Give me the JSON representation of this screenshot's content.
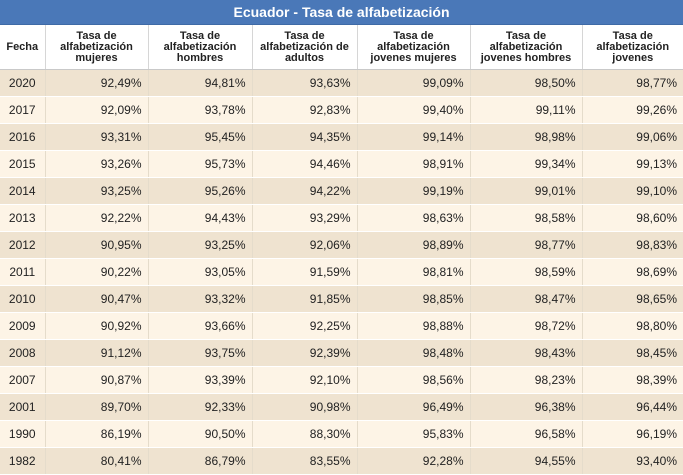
{
  "title": "Ecuador - Tasa de alfabetización",
  "headers": [
    "Fecha",
    "Tasa de alfabetización mujeres",
    "Tasa de alfabetización hombres",
    "Tasa de alfabetización de adultos",
    "Tasa de alfabetización jovenes mujeres",
    "Tasa de alfabetización jovenes hombres",
    "Tasa de alfabetización jovenes"
  ],
  "rows": [
    [
      "2020",
      "92,49%",
      "94,81%",
      "93,63%",
      "99,09%",
      "98,50%",
      "98,77%"
    ],
    [
      "2017",
      "92,09%",
      "93,78%",
      "92,83%",
      "99,40%",
      "99,11%",
      "99,26%"
    ],
    [
      "2016",
      "93,31%",
      "95,45%",
      "94,35%",
      "99,14%",
      "98,98%",
      "99,06%"
    ],
    [
      "2015",
      "93,26%",
      "95,73%",
      "94,46%",
      "98,91%",
      "99,34%",
      "99,13%"
    ],
    [
      "2014",
      "93,25%",
      "95,26%",
      "94,22%",
      "99,19%",
      "99,01%",
      "99,10%"
    ],
    [
      "2013",
      "92,22%",
      "94,43%",
      "93,29%",
      "98,63%",
      "98,58%",
      "98,60%"
    ],
    [
      "2012",
      "90,95%",
      "93,25%",
      "92,06%",
      "98,89%",
      "98,77%",
      "98,83%"
    ],
    [
      "2011",
      "90,22%",
      "93,05%",
      "91,59%",
      "98,81%",
      "98,59%",
      "98,69%"
    ],
    [
      "2010",
      "90,47%",
      "93,32%",
      "91,85%",
      "98,85%",
      "98,47%",
      "98,65%"
    ],
    [
      "2009",
      "90,92%",
      "93,66%",
      "92,25%",
      "98,88%",
      "98,72%",
      "98,80%"
    ],
    [
      "2008",
      "91,12%",
      "93,75%",
      "92,39%",
      "98,48%",
      "98,43%",
      "98,45%"
    ],
    [
      "2007",
      "90,87%",
      "93,39%",
      "92,10%",
      "98,56%",
      "98,23%",
      "98,39%"
    ],
    [
      "2001",
      "89,70%",
      "92,33%",
      "90,98%",
      "96,49%",
      "96,38%",
      "96,44%"
    ],
    [
      "1990",
      "86,19%",
      "90,50%",
      "88,30%",
      "95,83%",
      "96,58%",
      "96,19%"
    ],
    [
      "1982",
      "80,41%",
      "86,79%",
      "83,55%",
      "92,28%",
      "94,55%",
      "93,40%"
    ]
  ]
}
